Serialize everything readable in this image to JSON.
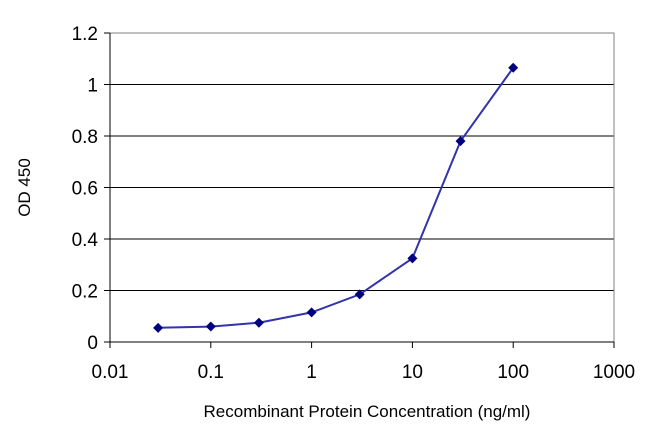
{
  "chart_data": {
    "type": "line",
    "xlabel": "Recombinant Protein Concentration (ng/ml)",
    "ylabel": "OD 450",
    "x_scale": "log",
    "xlim": [
      0.01,
      1000
    ],
    "ylim": [
      0,
      1.2
    ],
    "x_ticks": [
      "0.01",
      "0.1",
      "1",
      "10",
      "100",
      "1000"
    ],
    "y_ticks": [
      "0",
      "0.2",
      "0.4",
      "0.6",
      "0.8",
      "1",
      "1.2"
    ],
    "grid": "horizontal",
    "legend": "none",
    "series": [
      {
        "x": [
          0.03,
          0.1,
          0.3,
          1,
          3,
          10,
          30,
          100
        ],
        "y": [
          0.055,
          0.06,
          0.075,
          0.115,
          0.185,
          0.325,
          0.78,
          1.065
        ]
      }
    ],
    "colors": {
      "line": "#3333aa",
      "marker": "#000080",
      "grid": "#000000"
    }
  }
}
